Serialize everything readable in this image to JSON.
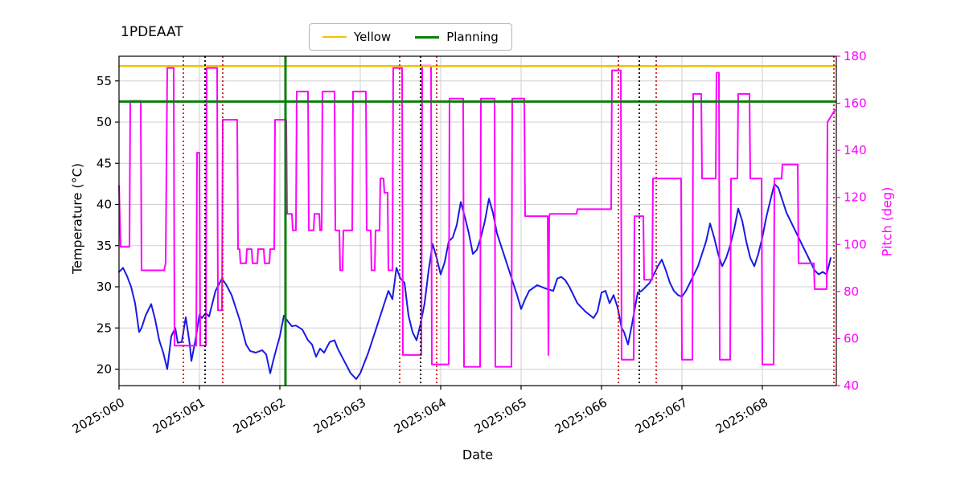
{
  "title": "1PDEAAT",
  "legend": {
    "items": [
      {
        "label": "Yellow",
        "color": "#f0c400",
        "width": 2.5
      },
      {
        "label": "Planning",
        "color": "#0a800a",
        "width": 3
      }
    ]
  },
  "axes": {
    "x": {
      "label": "Date",
      "min": 60.0,
      "max": 68.92,
      "ticks": [
        60,
        61,
        62,
        63,
        64,
        65,
        66,
        67,
        68
      ],
      "tick_labels": [
        "2025:060",
        "2025:061",
        "2025:062",
        "2025:063",
        "2025:064",
        "2025:065",
        "2025:066",
        "2025:067",
        "2025:068"
      ]
    },
    "y_left": {
      "label": "Temperature (°C)",
      "min": 18,
      "max": 58,
      "ticks": [
        20,
        25,
        30,
        35,
        40,
        45,
        50,
        55
      ],
      "color": "#000000"
    },
    "y_right": {
      "label": "Pitch (deg)",
      "min": 40,
      "max": 180,
      "ticks": [
        40,
        60,
        80,
        100,
        120,
        140,
        160,
        180
      ],
      "color": "#ff00ff"
    }
  },
  "chart_data": {
    "type": "line",
    "grid": true,
    "series": [
      {
        "name": "temperature",
        "axis": "left",
        "color": "#1a1ae6",
        "width": 2,
        "x": [
          60.0,
          60.05,
          60.1,
          60.15,
          60.2,
          60.25,
          60.28,
          60.33,
          60.4,
          60.45,
          60.5,
          60.55,
          60.6,
          60.65,
          60.7,
          60.73,
          60.78,
          60.83,
          60.88,
          60.9,
          60.95,
          61.0,
          61.03,
          61.08,
          61.12,
          61.2,
          61.28,
          61.33,
          61.4,
          61.5,
          61.58,
          61.63,
          61.7,
          61.78,
          61.83,
          61.88,
          61.93,
          62.0,
          62.05,
          62.1,
          62.15,
          62.2,
          62.28,
          62.35,
          62.4,
          62.45,
          62.5,
          62.55,
          62.62,
          62.68,
          62.72,
          62.8,
          62.88,
          62.95,
          63.0,
          63.1,
          63.2,
          63.3,
          63.35,
          63.4,
          63.45,
          63.5,
          63.55,
          63.6,
          63.65,
          63.7,
          63.75,
          63.8,
          63.85,
          63.9,
          63.95,
          64.0,
          64.05,
          64.1,
          64.15,
          64.2,
          64.25,
          64.3,
          64.35,
          64.4,
          64.45,
          64.5,
          64.55,
          64.6,
          64.65,
          64.7,
          64.75,
          64.8,
          64.85,
          64.9,
          64.95,
          65.0,
          65.05,
          65.1,
          65.2,
          65.3,
          65.4,
          65.45,
          65.5,
          65.55,
          65.6,
          65.7,
          65.8,
          65.9,
          65.95,
          66.0,
          66.05,
          66.1,
          66.15,
          66.2,
          66.25,
          66.28,
          66.33,
          66.38,
          66.45,
          66.5,
          66.55,
          66.6,
          66.65,
          66.7,
          66.75,
          66.8,
          66.85,
          66.9,
          66.95,
          67.0,
          67.05,
          67.1,
          67.15,
          67.2,
          67.25,
          67.3,
          67.35,
          67.4,
          67.45,
          67.5,
          67.55,
          67.6,
          67.65,
          67.7,
          67.75,
          67.8,
          67.85,
          67.9,
          67.95,
          68.0,
          68.05,
          68.1,
          68.15,
          68.2,
          68.25,
          68.3,
          68.35,
          68.4,
          68.45,
          68.5,
          68.55,
          68.6,
          68.65,
          68.7,
          68.75,
          68.8,
          68.85
        ],
        "y": [
          31.8,
          32.3,
          31.3,
          30.0,
          28.0,
          24.5,
          25.0,
          26.5,
          27.9,
          26.0,
          23.5,
          22.0,
          20.0,
          24.0,
          25.0,
          23.2,
          23.3,
          26.3,
          23.0,
          21.0,
          23.5,
          26.6,
          26.2,
          26.8,
          26.4,
          29.5,
          31.0,
          30.3,
          29.0,
          26.0,
          23.0,
          22.2,
          22.0,
          22.3,
          21.8,
          19.5,
          21.5,
          24.0,
          26.5,
          25.8,
          25.2,
          25.3,
          24.8,
          23.5,
          23.0,
          21.5,
          22.5,
          22.0,
          23.3,
          23.5,
          22.5,
          21.0,
          19.5,
          18.8,
          19.5,
          22.0,
          25.0,
          28.0,
          29.5,
          28.5,
          32.3,
          31.0,
          30.5,
          26.5,
          24.5,
          23.5,
          25.5,
          28.0,
          32.0,
          35.2,
          33.5,
          31.5,
          33.0,
          35.5,
          36.0,
          37.5,
          40.3,
          38.5,
          36.5,
          34.0,
          34.5,
          36.0,
          38.0,
          40.7,
          39.0,
          36.5,
          35.0,
          33.5,
          32.0,
          30.5,
          29.0,
          27.3,
          28.5,
          29.5,
          30.2,
          29.8,
          29.5,
          31.0,
          31.2,
          30.8,
          30.0,
          28.0,
          27.0,
          26.2,
          27.0,
          29.3,
          29.5,
          28.0,
          29.0,
          27.5,
          25.0,
          24.5,
          23.0,
          25.5,
          29.3,
          29.5,
          30.0,
          30.5,
          31.5,
          32.5,
          33.3,
          32.0,
          30.5,
          29.5,
          29.0,
          28.8,
          29.5,
          30.5,
          31.5,
          32.5,
          34.0,
          35.5,
          37.7,
          36.0,
          34.0,
          32.5,
          33.5,
          35.0,
          37.0,
          39.5,
          38.0,
          35.5,
          33.5,
          32.5,
          34.0,
          36.0,
          38.5,
          40.5,
          42.5,
          42.0,
          40.5,
          39.0,
          38.0,
          37.0,
          36.0,
          35.0,
          34.0,
          33.0,
          32.0,
          31.5,
          31.8,
          31.5,
          33.5
        ]
      },
      {
        "name": "pitch",
        "axis": "right",
        "color": "#ff00ff",
        "width": 2,
        "x": [
          60.0,
          60.02,
          60.13,
          60.14,
          60.27,
          60.28,
          60.56,
          60.58,
          60.6,
          60.68,
          60.69,
          60.96,
          60.97,
          61.0,
          61.01,
          61.08,
          61.09,
          61.22,
          61.23,
          61.28,
          61.29,
          61.47,
          61.48,
          61.5,
          61.51,
          61.58,
          61.59,
          61.65,
          61.66,
          61.72,
          61.73,
          61.8,
          61.81,
          61.87,
          61.88,
          61.93,
          61.94,
          62.08,
          62.09,
          62.15,
          62.16,
          62.2,
          62.21,
          62.35,
          62.36,
          62.42,
          62.43,
          62.49,
          62.5,
          62.52,
          62.53,
          62.68,
          62.69,
          62.74,
          62.75,
          62.78,
          62.79,
          62.9,
          62.91,
          63.07,
          63.08,
          63.13,
          63.14,
          63.18,
          63.19,
          63.24,
          63.25,
          63.29,
          63.3,
          63.34,
          63.35,
          63.4,
          63.41,
          63.52,
          63.53,
          63.76,
          63.77,
          63.88,
          63.89,
          64.1,
          64.11,
          64.28,
          64.29,
          64.49,
          64.5,
          64.67,
          64.68,
          64.88,
          64.89,
          65.04,
          65.05,
          65.33,
          65.34,
          65.35,
          65.36,
          65.69,
          65.7,
          66.12,
          66.13,
          66.24,
          66.25,
          66.4,
          66.41,
          66.52,
          66.53,
          66.63,
          66.64,
          66.99,
          67.0,
          67.13,
          67.14,
          67.24,
          67.25,
          67.42,
          67.43,
          67.46,
          67.47,
          67.6,
          67.61,
          67.69,
          67.7,
          67.84,
          67.85,
          67.99,
          68.0,
          68.14,
          68.15,
          68.24,
          68.25,
          68.44,
          68.45,
          68.64,
          68.65,
          68.8,
          68.81,
          68.9
        ],
        "y": [
          125,
          99,
          99,
          161,
          161,
          89,
          89,
          92,
          175,
          175,
          57,
          57,
          139,
          139,
          57,
          57,
          175,
          175,
          72,
          72,
          153,
          153,
          98,
          98,
          92,
          92,
          98,
          98,
          92,
          92,
          98,
          98,
          92,
          92,
          98,
          98,
          153,
          153,
          113,
          113,
          106,
          106,
          165,
          165,
          106,
          106,
          113,
          113,
          106,
          106,
          165,
          165,
          106,
          106,
          89,
          89,
          106,
          106,
          165,
          165,
          106,
          106,
          89,
          89,
          106,
          106,
          128,
          128,
          122,
          122,
          89,
          89,
          175,
          175,
          53,
          53,
          176,
          176,
          49,
          49,
          162,
          162,
          48,
          48,
          162,
          162,
          48,
          48,
          162,
          162,
          112,
          112,
          53,
          112,
          113,
          113,
          115,
          115,
          174,
          174,
          51,
          51,
          112,
          112,
          85,
          85,
          128,
          128,
          51,
          51,
          164,
          164,
          128,
          128,
          173,
          173,
          51,
          51,
          128,
          128,
          164,
          164,
          128,
          128,
          49,
          49,
          128,
          128,
          134,
          134,
          92,
          92,
          81,
          81,
          152,
          157
        ]
      }
    ],
    "limit_lines": [
      {
        "name": "yellow-limit",
        "orientation": "horizontal",
        "axis": "left",
        "value": 56.8,
        "color": "#f0c400",
        "width": 2.5
      },
      {
        "name": "planning-limit",
        "orientation": "horizontal",
        "axis": "left",
        "value": 52.5,
        "color": "#0a800a",
        "width": 3
      },
      {
        "name": "planning-vertical",
        "orientation": "vertical",
        "value": 62.07,
        "color": "#0a800a",
        "width": 3
      }
    ],
    "vertical_guides": [
      {
        "name": "red-dotted",
        "color": "#cf1b1b",
        "x": [
          60.8,
          61.29,
          63.49,
          63.95,
          66.21,
          66.68,
          68.89
        ]
      },
      {
        "name": "black-dotted",
        "color": "#000000",
        "x": [
          61.07,
          63.75,
          66.47
        ]
      }
    ]
  }
}
